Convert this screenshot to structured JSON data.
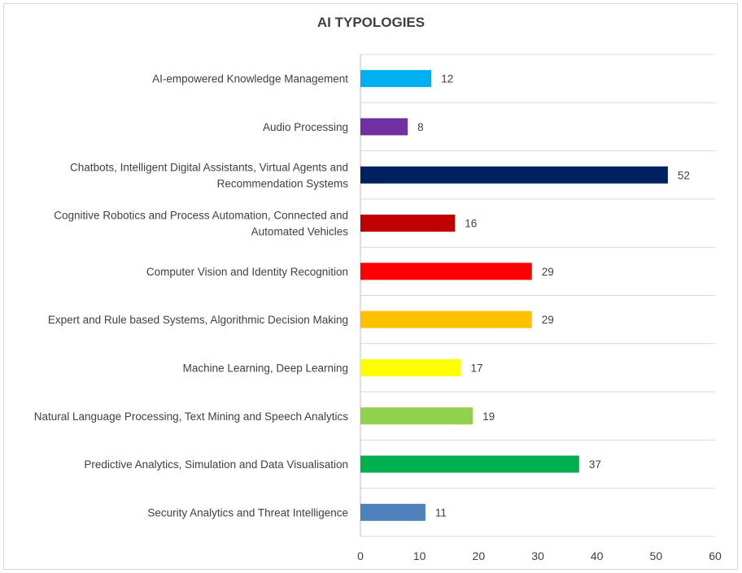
{
  "chart_data": {
    "type": "bar",
    "orientation": "horizontal",
    "title": "AI TYPOLOGIES",
    "xlabel": "",
    "ylabel": "",
    "xlim": [
      0,
      60
    ],
    "x_ticks": [
      0,
      10,
      20,
      30,
      40,
      50,
      60
    ],
    "grid": true,
    "legend": "none",
    "data_labels": true,
    "categories": [
      [
        "AI-empowered Knowledge Management"
      ],
      [
        "Audio Processing"
      ],
      [
        "Chatbots, Intelligent Digital Assistants, Virtual Agents and",
        "Recommendation Systems"
      ],
      [
        "Cognitive Robotics and Process Automation, Connected and",
        "Automated Vehicles"
      ],
      [
        "Computer Vision and Identity Recognition"
      ],
      [
        "Expert and Rule based Systems, Algorithmic Decision Making"
      ],
      [
        "Machine Learning, Deep Learning"
      ],
      [
        "Natural Language Processing, Text Mining and Speech Analytics"
      ],
      [
        "Predictive Analytics, Simulation and Data Visualisation"
      ],
      [
        "Security Analytics and Threat Intelligence"
      ]
    ],
    "values": [
      12,
      8,
      52,
      16,
      29,
      29,
      17,
      19,
      37,
      11
    ],
    "colors": [
      "#00b0f0",
      "#7030a0",
      "#002060",
      "#c00000",
      "#ff0000",
      "#ffc000",
      "#ffff00",
      "#92d050",
      "#00b050",
      "#4f81bd"
    ]
  }
}
